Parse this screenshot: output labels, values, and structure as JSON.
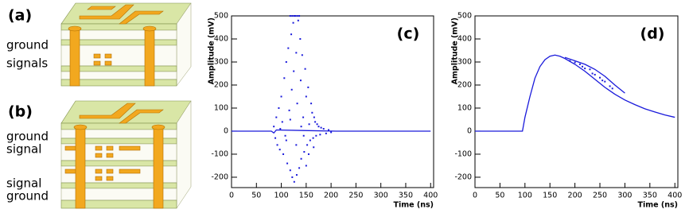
{
  "diagrams": [
    {
      "label": "(a)",
      "layers": [
        "ground",
        "signals"
      ]
    },
    {
      "label": "(b)",
      "layers": [
        "ground",
        "signal",
        "signal",
        "ground"
      ]
    }
  ],
  "chart_data": [
    {
      "type": "scatter",
      "panel_label": "(c)",
      "ylabel": "Amplitude (mV)",
      "xlabel": "Time (ns)",
      "xlim": [
        0,
        406
      ],
      "ylim": [
        -245,
        500
      ],
      "xticks": [
        0,
        50,
        100,
        150,
        200,
        250,
        300,
        350,
        400
      ],
      "yticks": [
        -200,
        -100,
        0,
        100,
        200,
        300,
        400,
        500
      ],
      "series": [
        {
          "type": "line",
          "color": "#1a1adb",
          "x": [
            0,
            80,
            85,
            90,
            210,
            400
          ],
          "values": [
            0,
            0,
            -8,
            5,
            0,
            0
          ]
        },
        {
          "type": "scatter",
          "color": "#1a1adb",
          "x": [
            85,
            88,
            90,
            92,
            95,
            97,
            100,
            102,
            104,
            106,
            108,
            110,
            112,
            114,
            116,
            118,
            120,
            121,
            122,
            124,
            125,
            126,
            128,
            130,
            131,
            132,
            134,
            136,
            138,
            139,
            140,
            142,
            144,
            146,
            148,
            150,
            152,
            154,
            156,
            158,
            160,
            162,
            164,
            166,
            168,
            170,
            172,
            175,
            178,
            180,
            185,
            190,
            195,
            200,
            98,
            110,
            118,
            130,
            145,
            155,
            165,
            150,
            140,
            118,
            122,
            126,
            132,
            136
          ],
          "values": [
            20,
            -30,
            60,
            -60,
            100,
            -80,
            150,
            40,
            -100,
            230,
            -20,
            300,
            -140,
            360,
            90,
            -170,
            420,
            180,
            -200,
            470,
            260,
            -220,
            500,
            340,
            -190,
            120,
            480,
            -160,
            400,
            220,
            -120,
            330,
            60,
            -90,
            270,
            150,
            -60,
            190,
            30,
            -40,
            120,
            80,
            -30,
            60,
            40,
            -20,
            30,
            20,
            -15,
            15,
            10,
            -10,
            5,
            -5,
            10,
            -40,
            50,
            -60,
            -20,
            -100,
            -70,
            -150,
            20,
            500,
            500,
            500,
            500,
            500
          ]
        }
      ]
    },
    {
      "type": "line",
      "panel_label": "(d)",
      "ylabel": "Amplitude (mV)",
      "xlabel": "Time (ns)",
      "xlim": [
        0,
        406
      ],
      "ylim": [
        -245,
        500
      ],
      "xticks": [
        0,
        50,
        100,
        150,
        200,
        250,
        300,
        350,
        400
      ],
      "yticks": [
        -200,
        -100,
        0,
        100,
        200,
        300,
        400,
        500
      ],
      "series": [
        {
          "type": "line",
          "color": "#1a1adb",
          "x": [
            0,
            90,
            95,
            100,
            110,
            120,
            130,
            140,
            150,
            160,
            170,
            180,
            200,
            220,
            240,
            260,
            280,
            300,
            320,
            340,
            360,
            380,
            400
          ],
          "values": [
            0,
            0,
            0,
            60,
            150,
            230,
            280,
            310,
            325,
            330,
            325,
            315,
            290,
            260,
            225,
            190,
            160,
            135,
            115,
            97,
            83,
            70,
            60
          ]
        },
        {
          "type": "line",
          "color": "#1a1adb",
          "x": [
            180,
            200,
            220,
            240,
            260,
            280,
            300
          ],
          "values": [
            320,
            305,
            290,
            268,
            238,
            200,
            165
          ]
        },
        {
          "type": "scatter",
          "color": "#1a1adb",
          "x": [
            190,
            200,
            210,
            215,
            220,
            230,
            235,
            240,
            250,
            255,
            260,
            270,
            275
          ],
          "values": [
            305,
            298,
            290,
            280,
            272,
            268,
            250,
            245,
            232,
            220,
            215,
            195,
            185
          ]
        }
      ]
    }
  ]
}
